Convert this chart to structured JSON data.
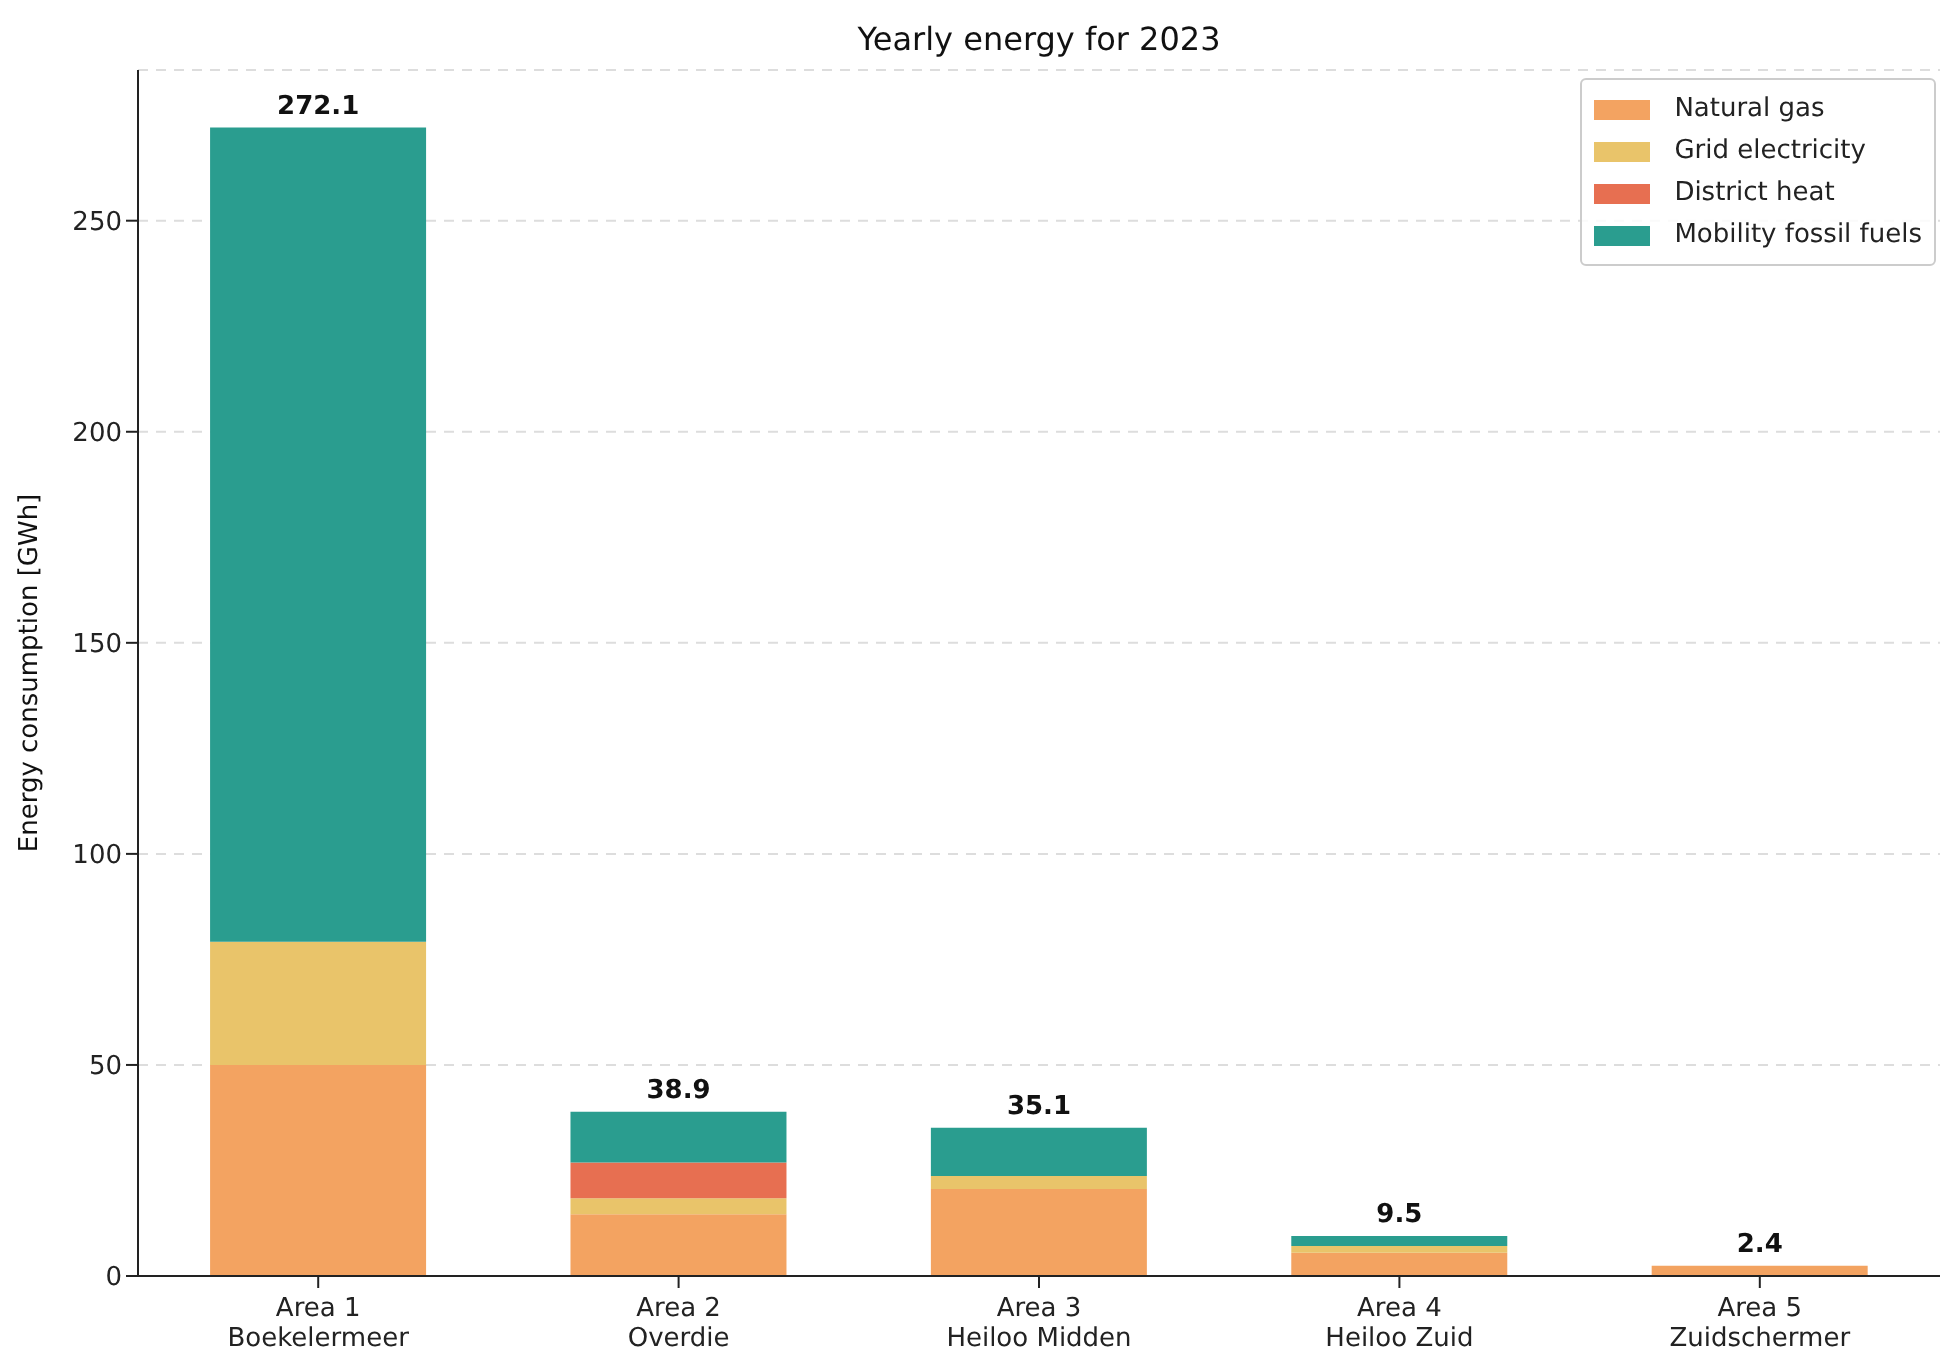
{
  "chart_data": {
    "type": "bar",
    "title": "Yearly energy for 2023",
    "ylabel": "Energy consumption [GWh]",
    "categories": [
      "Area 1\nBoekelermeer",
      "Area 2\nOverdie",
      "Area 3\nHeiloo Midden",
      "Area 4\nHeiloo Zuid",
      "Area 5\nZuidschermer"
    ],
    "stacked": true,
    "series": [
      {
        "name": "Natural gas",
        "color": "#f3a361",
        "values": [
          50,
          14.6,
          20.6,
          5.5,
          2.4
        ]
      },
      {
        "name": "Grid electricity",
        "color": "#e9c46a",
        "values": [
          29.2,
          3.8,
          3.1,
          1.6,
          0
        ]
      },
      {
        "name": "District heat",
        "color": "#e76f51",
        "values": [
          0,
          8.5,
          0,
          0,
          0
        ]
      },
      {
        "name": "Mobility fossil fuels",
        "color": "#2a9d8f",
        "values": [
          192.9,
          12.0,
          11.4,
          2.4,
          0
        ]
      }
    ],
    "totals": [
      "272.1",
      "38.9",
      "35.1",
      "9.5",
      "2.4"
    ],
    "ylim": [
      0,
      285.7
    ],
    "yticks": [
      0,
      50,
      100,
      150,
      200,
      250
    ],
    "grid": "y",
    "legend": "top right"
  }
}
